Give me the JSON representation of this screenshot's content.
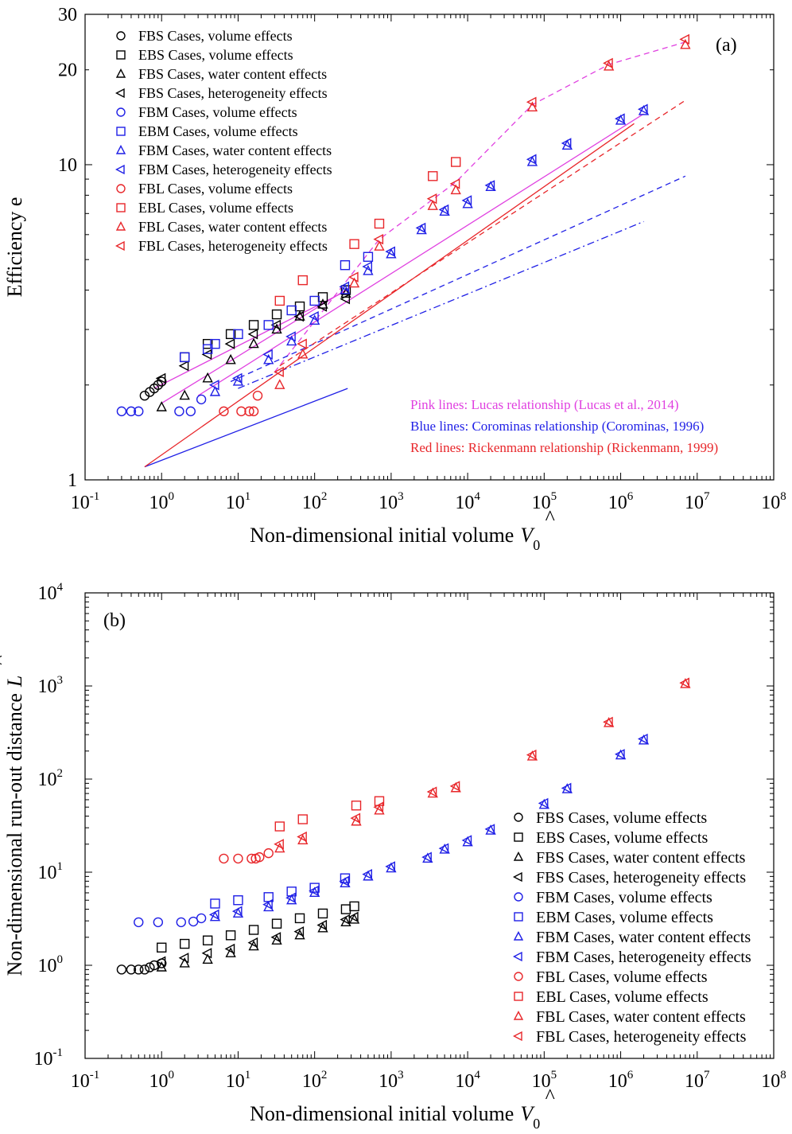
{
  "colors": {
    "black": "#000000",
    "blue": "#1f1fe6",
    "red": "#e8262a",
    "pink": "#e040e0"
  },
  "legend": [
    {
      "label": "FBS Cases, volume effects",
      "color": "black",
      "marker": "circle"
    },
    {
      "label": "EBS Cases, volume effects",
      "color": "black",
      "marker": "square"
    },
    {
      "label": "FBS Cases, water content effects",
      "color": "black",
      "marker": "triangle"
    },
    {
      "label": "FBS Cases, heterogeneity effects",
      "color": "black",
      "marker": "left-triangle"
    },
    {
      "label": "FBM Cases, volume effects",
      "color": "blue",
      "marker": "circle"
    },
    {
      "label": "EBM Cases, volume effects",
      "color": "blue",
      "marker": "square"
    },
    {
      "label": "FBM Cases, water content effects",
      "color": "blue",
      "marker": "triangle"
    },
    {
      "label": "FBM Cases, heterogeneity effects",
      "color": "blue",
      "marker": "left-triangle"
    },
    {
      "label": "FBL Cases, volume effects",
      "color": "red",
      "marker": "circle"
    },
    {
      "label": "EBL Cases, volume effects",
      "color": "red",
      "marker": "square"
    },
    {
      "label": "FBL Cases, water content effects",
      "color": "red",
      "marker": "triangle"
    },
    {
      "label": "FBL Cases, heterogeneity effects",
      "color": "red",
      "marker": "left-triangle"
    }
  ],
  "chart_data": [
    {
      "type": "scatter",
      "panel_label": "(a)",
      "xlabel": "Non-dimensional initial volume",
      "xlabel_symbol": "V",
      "xlabel_hat": "^",
      "xlabel_sub": "0",
      "ylabel": "Efficiency e",
      "xscale": "log",
      "yscale": "log",
      "xlim": [
        0.1,
        100000000
      ],
      "ylim": [
        1,
        30
      ],
      "x_ticks": [
        {
          "base": "10",
          "exp": "-1"
        },
        {
          "base": "10",
          "exp": "0"
        },
        {
          "base": "10",
          "exp": "1"
        },
        {
          "base": "10",
          "exp": "2"
        },
        {
          "base": "10",
          "exp": "3"
        },
        {
          "base": "10",
          "exp": "4"
        },
        {
          "base": "10",
          "exp": "5"
        },
        {
          "base": "10",
          "exp": "6"
        },
        {
          "base": "10",
          "exp": "7"
        },
        {
          "base": "10",
          "exp": "8"
        }
      ],
      "y_ticks": [
        "1",
        "10",
        "20",
        "30"
      ],
      "legend_position": "top-left",
      "notes": [
        {
          "text": "Pink lines: Lucas relationship (Lucas et al., 2014)",
          "color": "pink"
        },
        {
          "text": "Blue lines: Corominas relationship (Corominas, 1996)",
          "color": "blue"
        },
        {
          "text": "Red lines: Rickenmann relationship (Rickenmann, 1999)",
          "color": "red"
        }
      ],
      "series": [
        {
          "name": "FBS Cases, volume effects",
          "color": "black",
          "marker": "circle",
          "x": [
            0.6,
            0.7,
            0.8,
            0.9,
            1.0
          ],
          "y": [
            1.85,
            1.9,
            1.95,
            2.0,
            2.05
          ]
        },
        {
          "name": "EBS Cases, volume effects",
          "color": "black",
          "marker": "square",
          "x": [
            2,
            4,
            8,
            16,
            32,
            64,
            128,
            256
          ],
          "y": [
            2.45,
            2.7,
            2.9,
            3.1,
            3.35,
            3.55,
            3.8,
            4.0
          ]
        },
        {
          "name": "FBS Cases, water content effects",
          "color": "black",
          "marker": "triangle",
          "x": [
            1,
            2,
            4,
            8,
            16,
            32,
            64,
            128,
            256
          ],
          "y": [
            1.7,
            1.85,
            2.1,
            2.4,
            2.7,
            3.0,
            3.3,
            3.6,
            3.9
          ]
        },
        {
          "name": "FBS Cases, heterogeneity effects",
          "color": "black",
          "marker": "left-triangle",
          "x": [
            1,
            2,
            4,
            8,
            16,
            32,
            64,
            128,
            256
          ],
          "y": [
            2.1,
            2.3,
            2.5,
            2.7,
            2.9,
            3.1,
            3.3,
            3.55,
            3.75
          ]
        },
        {
          "name": "FBM Cases, volume effects",
          "color": "blue",
          "marker": "circle",
          "x": [
            0.3,
            0.4,
            0.5,
            1.7,
            2.4,
            3.3
          ],
          "y": [
            1.65,
            1.65,
            1.65,
            1.65,
            1.65,
            1.8
          ]
        },
        {
          "name": "EBM Cases, volume effects",
          "color": "blue",
          "marker": "square",
          "x": [
            2,
            4,
            5,
            10,
            25,
            50,
            100,
            250,
            500
          ],
          "y": [
            2.45,
            2.6,
            2.7,
            2.9,
            3.1,
            3.45,
            3.7,
            4.8,
            5.1
          ]
        },
        {
          "name": "FBM Cases, water content effects",
          "color": "blue",
          "marker": "triangle",
          "x": [
            5,
            10,
            25,
            50,
            100,
            250,
            500,
            1000,
            2500,
            5000,
            10000,
            20000,
            70000,
            200000,
            1000000,
            2000000
          ],
          "y": [
            1.9,
            2.05,
            2.4,
            2.75,
            3.2,
            4.0,
            4.6,
            5.2,
            6.2,
            7.1,
            7.5,
            8.5,
            10.2,
            11.5,
            13.8,
            14.8
          ]
        },
        {
          "name": "FBM Cases, heterogeneity effects",
          "color": "blue",
          "marker": "left-triangle",
          "x": [
            5,
            10,
            25,
            50,
            100,
            250,
            500,
            1000,
            2500,
            5000,
            10000,
            20000,
            70000,
            200000,
            1000000,
            2000000
          ],
          "y": [
            2.0,
            2.1,
            2.5,
            2.85,
            3.3,
            4.1,
            4.75,
            5.3,
            6.3,
            7.2,
            7.7,
            8.6,
            10.4,
            11.7,
            14.0,
            15.0
          ]
        },
        {
          "name": "FBL Cases, volume effects",
          "color": "red",
          "marker": "circle",
          "x": [
            6.5,
            11,
            14,
            16,
            18
          ],
          "y": [
            1.65,
            1.65,
            1.65,
            1.65,
            1.85
          ]
        },
        {
          "name": "EBL Cases, volume effects",
          "color": "red",
          "marker": "square",
          "x": [
            35,
            70,
            330,
            700,
            3500,
            7000
          ],
          "y": [
            3.7,
            4.3,
            5.6,
            6.5,
            9.2,
            10.2
          ]
        },
        {
          "name": "FBL Cases, water content effects",
          "color": "red",
          "marker": "triangle",
          "x": [
            35,
            70,
            330,
            700,
            3500,
            7000,
            70000,
            700000,
            7000000
          ],
          "y": [
            2.0,
            2.5,
            4.2,
            5.5,
            7.4,
            8.3,
            15.2,
            20.5,
            24.0
          ]
        },
        {
          "name": "FBL Cases, heterogeneity effects",
          "color": "red",
          "marker": "left-triangle",
          "x": [
            35,
            70,
            330,
            700,
            3500,
            7000,
            70000,
            700000,
            7000000
          ],
          "y": [
            2.2,
            2.7,
            4.4,
            5.8,
            7.8,
            8.7,
            15.8,
            21.0,
            25.0
          ]
        }
      ],
      "lines": [
        {
          "color": "pink",
          "style": "solid",
          "x": [
            0.8,
            270
          ],
          "y": [
            1.95,
            4.0
          ]
        },
        {
          "color": "pink",
          "style": "solid",
          "x": [
            1,
            300
          ],
          "y": [
            1.75,
            4.1
          ]
        },
        {
          "color": "pink",
          "style": "solid",
          "x": [
            3,
            2000000
          ],
          "y": [
            1.85,
            14.5
          ]
        },
        {
          "color": "pink",
          "style": "dashed",
          "x": [
            30,
            700,
            7000,
            70000,
            700000,
            7000000
          ],
          "y": [
            2.2,
            5.8,
            8.8,
            15.5,
            20.8,
            24.5
          ]
        },
        {
          "color": "blue",
          "style": "solid",
          "x": [
            0.6,
            270
          ],
          "y": [
            1.1,
            1.95
          ]
        },
        {
          "color": "blue",
          "style": "dash-dot",
          "x": [
            10,
            2000000
          ],
          "y": [
            1.95,
            6.6
          ]
        },
        {
          "color": "blue",
          "style": "dashed",
          "x": [
            8,
            7000000
          ],
          "y": [
            2.05,
            9.2
          ]
        },
        {
          "color": "red",
          "style": "solid",
          "x": [
            0.6,
            1500000
          ],
          "y": [
            1.1,
            13.5
          ]
        },
        {
          "color": "red",
          "style": "dashed",
          "x": [
            35,
            7000000
          ],
          "y": [
            2.3,
            16.0
          ]
        }
      ]
    },
    {
      "type": "scatter",
      "panel_label": "(b)",
      "xlabel": "Non-dimensional initial volume",
      "xlabel_symbol": "V",
      "xlabel_hat": "^",
      "xlabel_sub": "0",
      "ylabel": "Non-dimensional run-out distance",
      "ylabel_symbol": "L",
      "ylabel_hat": "^",
      "xscale": "log",
      "yscale": "log",
      "xlim": [
        0.1,
        100000000
      ],
      "ylim": [
        0.1,
        10000
      ],
      "x_ticks": [
        {
          "base": "10",
          "exp": "-1"
        },
        {
          "base": "10",
          "exp": "0"
        },
        {
          "base": "10",
          "exp": "1"
        },
        {
          "base": "10",
          "exp": "2"
        },
        {
          "base": "10",
          "exp": "3"
        },
        {
          "base": "10",
          "exp": "4"
        },
        {
          "base": "10",
          "exp": "5"
        },
        {
          "base": "10",
          "exp": "6"
        },
        {
          "base": "10",
          "exp": "7"
        },
        {
          "base": "10",
          "exp": "8"
        }
      ],
      "y_ticks": [
        {
          "base": "10",
          "exp": "-1"
        },
        {
          "base": "10",
          "exp": "0"
        },
        {
          "base": "10",
          "exp": "1"
        },
        {
          "base": "10",
          "exp": "2"
        },
        {
          "base": "10",
          "exp": "3"
        },
        {
          "base": "10",
          "exp": "4"
        }
      ],
      "legend_position": "bottom-right",
      "series": [
        {
          "name": "FBS Cases, volume effects",
          "color": "black",
          "marker": "circle",
          "x": [
            0.3,
            0.4,
            0.5,
            0.6,
            0.7,
            0.8,
            1.0
          ],
          "y": [
            0.9,
            0.9,
            0.9,
            0.9,
            0.95,
            1.0,
            1.05
          ]
        },
        {
          "name": "EBS Cases, volume effects",
          "color": "black",
          "marker": "square",
          "x": [
            1,
            2,
            4,
            8,
            16,
            32,
            64,
            128,
            256,
            330
          ],
          "y": [
            1.55,
            1.7,
            1.85,
            2.1,
            2.4,
            2.8,
            3.2,
            3.6,
            4.0,
            4.3
          ]
        },
        {
          "name": "FBS Cases, water content effects",
          "color": "black",
          "marker": "triangle",
          "x": [
            1,
            2,
            4,
            8,
            16,
            32,
            64,
            128,
            256,
            330
          ],
          "y": [
            0.95,
            1.05,
            1.15,
            1.35,
            1.6,
            1.85,
            2.1,
            2.5,
            2.9,
            3.1
          ]
        },
        {
          "name": "FBS Cases, heterogeneity effects",
          "color": "black",
          "marker": "left-triangle",
          "x": [
            1,
            2,
            4,
            8,
            16,
            32,
            64,
            128,
            256,
            330
          ],
          "y": [
            1.1,
            1.2,
            1.35,
            1.5,
            1.75,
            2.0,
            2.3,
            2.7,
            3.1,
            3.3
          ]
        },
        {
          "name": "FBM Cases, volume effects",
          "color": "blue",
          "marker": "circle",
          "x": [
            0.5,
            0.9,
            1.8,
            2.6,
            3.3
          ],
          "y": [
            2.9,
            2.9,
            2.9,
            2.95,
            3.2
          ]
        },
        {
          "name": "EBM Cases, volume effects",
          "color": "blue",
          "marker": "square",
          "x": [
            5,
            10,
            25,
            50,
            100,
            250
          ],
          "y": [
            4.6,
            5.0,
            5.4,
            6.2,
            6.8,
            8.6
          ]
        },
        {
          "name": "FBM Cases, water content effects",
          "color": "blue",
          "marker": "triangle",
          "x": [
            5,
            10,
            25,
            50,
            100,
            250,
            500,
            1000,
            3000,
            5000,
            10000,
            20000,
            100000,
            200000,
            1000000,
            2000000
          ],
          "y": [
            3.3,
            3.6,
            4.2,
            5.0,
            6.0,
            7.6,
            9.0,
            11.0,
            14.0,
            17.5,
            21.0,
            28.0,
            53.0,
            78.0,
            180.0,
            260.0
          ]
        },
        {
          "name": "FBM Cases, heterogeneity effects",
          "color": "blue",
          "marker": "left-triangle",
          "x": [
            5,
            10,
            25,
            50,
            100,
            250,
            500,
            1000,
            3000,
            5000,
            10000,
            20000,
            100000,
            200000,
            1000000,
            2000000
          ],
          "y": [
            3.5,
            3.8,
            4.5,
            5.3,
            6.3,
            8.0,
            9.5,
            11.5,
            14.5,
            18.0,
            22.0,
            29.0,
            55.0,
            80.0,
            185.0,
            270.0
          ]
        },
        {
          "name": "FBL Cases, volume effects",
          "color": "red",
          "marker": "circle",
          "x": [
            6.5,
            10,
            15,
            17,
            19,
            25
          ],
          "y": [
            14,
            14,
            14,
            14,
            14.5,
            16
          ]
        },
        {
          "name": "EBL Cases, volume effects",
          "color": "red",
          "marker": "square",
          "x": [
            35,
            70,
            350,
            700
          ],
          "y": [
            31,
            37,
            52,
            58
          ]
        },
        {
          "name": "FBL Cases, water content effects",
          "color": "red",
          "marker": "triangle",
          "x": [
            35,
            70,
            350,
            700,
            3500,
            7000,
            70000,
            700000,
            7000000
          ],
          "y": [
            18,
            22,
            35,
            46,
            70,
            80,
            175,
            400,
            1050
          ]
        },
        {
          "name": "FBL Cases, heterogeneity effects",
          "color": "red",
          "marker": "left-triangle",
          "x": [
            35,
            70,
            350,
            700,
            3500,
            7000,
            70000,
            700000,
            7000000
          ],
          "y": [
            20,
            24,
            38,
            50,
            73,
            84,
            182,
            410,
            1080
          ]
        }
      ]
    }
  ]
}
